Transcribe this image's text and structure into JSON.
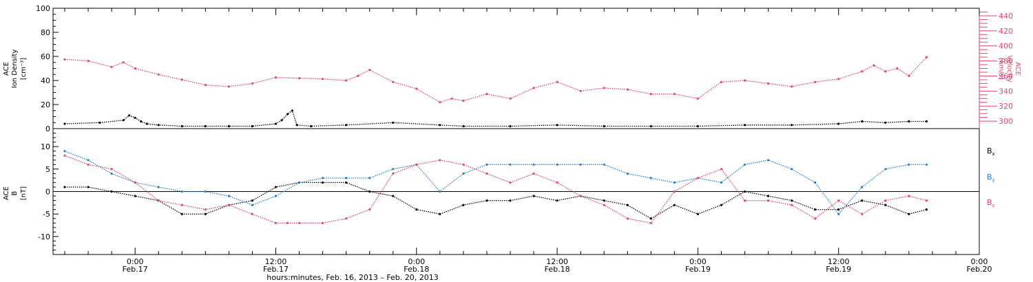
{
  "chart_data": [
    {
      "type": "scatter",
      "panel": "top",
      "ylabel": [
        "ACE",
        "Ion Density",
        "[cm⁻³]"
      ],
      "ylim": [
        0,
        100
      ],
      "yticks": [
        "100",
        "80",
        "60",
        "40",
        "20",
        "0"
      ],
      "y2label": [
        "ACE",
        "Velocity",
        "[km/s]"
      ],
      "y2lim": [
        290,
        450
      ],
      "y2ticks": [
        "440",
        "420",
        "400",
        "380",
        "360",
        "340",
        "320",
        "300"
      ],
      "series": [
        {
          "name": "ACE Ion Density",
          "axis": "left",
          "color": "#000000",
          "x": [
            -6,
            -3,
            -1,
            -0.5,
            0,
            0.5,
            1,
            2,
            4,
            6,
            8,
            10,
            12,
            12.5,
            13,
            13.4,
            13.8,
            15,
            18,
            22,
            26,
            28,
            32,
            36,
            40,
            44,
            48,
            52,
            56,
            60,
            62,
            64,
            66,
            67.5
          ],
          "y": [
            4,
            5,
            7,
            11,
            9,
            6,
            4,
            3,
            2,
            2,
            2,
            2,
            4,
            7,
            12,
            15,
            3,
            2,
            3,
            5,
            3,
            2,
            2,
            3,
            2,
            2,
            2,
            3,
            3,
            4,
            6,
            5,
            6,
            6
          ]
        },
        {
          "name": "ACE Velocity",
          "axis": "right",
          "color": "#e8436b",
          "x": [
            -6,
            -4,
            -2,
            -1,
            0,
            2,
            4,
            6,
            8,
            10,
            12,
            14,
            16,
            18,
            19,
            20,
            22,
            24,
            26,
            27,
            28,
            30,
            32,
            34,
            36,
            38,
            40,
            42,
            44,
            46,
            48,
            50,
            52,
            54,
            56,
            58,
            60,
            62,
            63,
            64,
            65,
            66,
            67.5
          ],
          "y": [
            382,
            380,
            372,
            378,
            370,
            362,
            355,
            348,
            346,
            350,
            358,
            357,
            356,
            354,
            360,
            368,
            352,
            343,
            325,
            330,
            327,
            336,
            330,
            344,
            352,
            340,
            344,
            342,
            336,
            336,
            330,
            352,
            354,
            350,
            346,
            352,
            356,
            366,
            374,
            366,
            370,
            360,
            385
          ]
        }
      ]
    },
    {
      "type": "scatter",
      "panel": "bottom",
      "ylabel": [
        "ACE",
        "B",
        "[nT]"
      ],
      "ylim": [
        -14,
        14
      ],
      "yticks": [
        "10",
        "5",
        "0",
        "-5",
        "-10"
      ],
      "series": [
        {
          "name": "Bx",
          "color": "#000000",
          "x": [
            -6,
            -4,
            -2,
            0,
            2,
            4,
            6,
            8,
            10,
            12,
            14,
            16,
            18,
            20,
            22,
            24,
            26,
            28,
            30,
            32,
            34,
            36,
            38,
            40,
            42,
            44,
            46,
            48,
            50,
            52,
            54,
            56,
            58,
            60,
            62,
            64,
            66,
            67.5
          ],
          "y": [
            1,
            1,
            0,
            -1,
            -2,
            -5,
            -5,
            -3,
            -2,
            1,
            2,
            2,
            2,
            0,
            -1,
            -4,
            -5,
            -3,
            -2,
            -2,
            -1,
            -2,
            -1,
            -2,
            -3,
            -6,
            -3,
            -5,
            -3,
            0,
            -1,
            -2,
            -4,
            -4,
            -2,
            -3,
            -5,
            -4
          ]
        },
        {
          "name": "By",
          "color": "#1e7fd6",
          "x": [
            -6,
            -4,
            -2,
            0,
            2,
            4,
            6,
            8,
            10,
            12,
            14,
            16,
            18,
            20,
            22,
            24,
            26,
            28,
            30,
            32,
            34,
            36,
            38,
            40,
            42,
            44,
            46,
            48,
            50,
            52,
            54,
            56,
            58,
            60,
            62,
            64,
            66,
            67.5
          ],
          "y": [
            9,
            7,
            4,
            2,
            1,
            0,
            0,
            -1,
            -3,
            -1,
            2,
            3,
            3,
            3,
            5,
            6,
            0,
            4,
            6,
            6,
            6,
            6,
            6,
            6,
            4,
            3,
            2,
            3,
            2,
            6,
            7,
            5,
            2,
            -5,
            1,
            5,
            6,
            6
          ]
        },
        {
          "name": "Bz",
          "color": "#e8436b",
          "x": [
            -6,
            -4,
            -2,
            0,
            2,
            4,
            6,
            8,
            10,
            12,
            13,
            14,
            16,
            18,
            20,
            22,
            24,
            26,
            28,
            30,
            32,
            34,
            36,
            38,
            40,
            42,
            44,
            46,
            48,
            50,
            52,
            54,
            56,
            58,
            60,
            62,
            64,
            66,
            67.5
          ],
          "y": [
            8,
            6,
            5,
            2,
            -2,
            -3,
            -4,
            -3,
            -5,
            -7,
            -7,
            -7,
            -7,
            -6,
            -4,
            4,
            6,
            7,
            6,
            4,
            2,
            4,
            2,
            -1,
            -3,
            -6,
            -7,
            0,
            3,
            5,
            -2,
            -2,
            -3,
            -6,
            -2,
            -5,
            -2,
            -1,
            -2
          ]
        }
      ],
      "legend": [
        "Bx",
        "By",
        "Bz"
      ],
      "legend_placement": "right"
    }
  ],
  "x_axis": {
    "ticks": [
      {
        "time": "0:00",
        "date": "Feb.17"
      },
      {
        "time": "12:00",
        "date": "Feb.17"
      },
      {
        "time": "0:00",
        "date": "Feb.18"
      },
      {
        "time": "12:00",
        "date": "Feb.18"
      },
      {
        "time": "0:00",
        "date": "Feb.19"
      },
      {
        "time": "12:00",
        "date": "Feb.19"
      },
      {
        "time": "0:00",
        "date": "Feb.20"
      }
    ],
    "title": "hours:minutes, Feb. 16, 2013 – Feb. 20, 2013"
  },
  "colors": {
    "density": "#000000",
    "velocity": "#e8436b",
    "bx": "#000000",
    "by": "#1e7fd6",
    "bz": "#e8436b"
  }
}
